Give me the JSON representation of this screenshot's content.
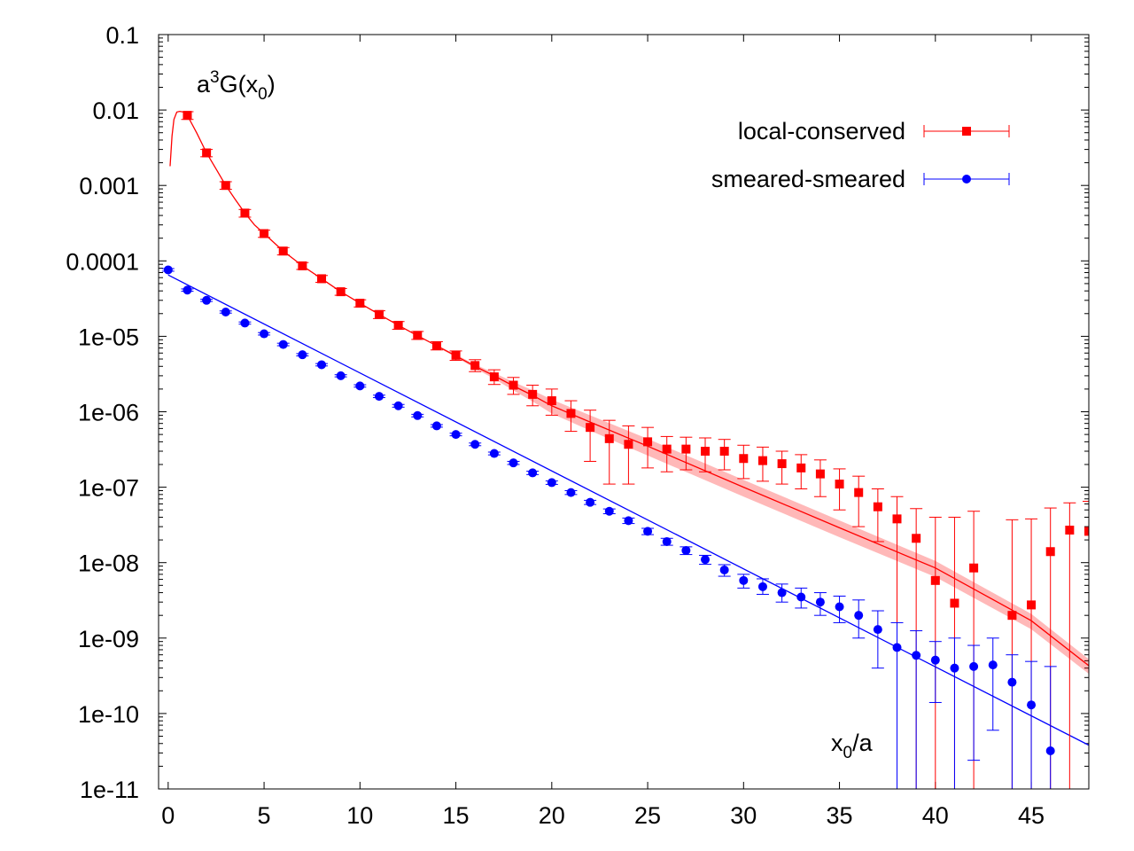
{
  "chart_data": {
    "type": "scatter",
    "yscale": "log",
    "xlim": [
      -0.5,
      48
    ],
    "ylim": [
      1e-11,
      0.1
    ],
    "x_ticks": [
      0,
      5,
      10,
      15,
      20,
      25,
      30,
      35,
      40,
      45
    ],
    "x_tick_labels": [
      "0",
      "5",
      "10",
      "15",
      "20",
      "25",
      "30",
      "35",
      "40",
      "45"
    ],
    "y_ticks": [
      0.1,
      0.01,
      0.001,
      0.0001,
      1e-05,
      1e-06,
      1e-07,
      1e-08,
      1e-09,
      1e-10,
      1e-11
    ],
    "y_tick_labels": [
      "0.1",
      "0.01",
      "0.001",
      "0.0001",
      "1e-05",
      "1e-06",
      "1e-07",
      "1e-08",
      "1e-09",
      "1e-10",
      "1e-11"
    ],
    "ylabel": {
      "base": "a",
      "sup": "3",
      "main": "G(x",
      "sub": "0",
      "tail": ")"
    },
    "xlabel": {
      "base": "x",
      "sub": "0",
      "tail": "/a"
    },
    "legend_position": "top-right",
    "series": [
      {
        "name": "local-conserved",
        "color": "#ff0000",
        "marker": "square",
        "x": [
          1,
          2,
          3,
          4,
          5,
          6,
          7,
          8,
          9,
          10,
          11,
          12,
          13,
          14,
          15,
          16,
          17,
          18,
          19,
          20,
          21,
          22,
          23,
          24,
          25,
          26,
          27,
          28,
          29,
          30,
          31,
          32,
          33,
          34,
          35,
          36,
          37,
          38,
          39,
          40,
          41,
          42,
          43,
          44,
          45,
          46,
          47,
          48
        ],
        "y": [
          0.0085,
          0.0027,
          0.001,
          0.00043,
          0.00023,
          0.000135,
          8.6e-05,
          5.8e-05,
          3.9e-05,
          2.75e-05,
          1.95e-05,
          1.4e-05,
          1.03e-05,
          7.5e-06,
          5.6e-06,
          4.1e-06,
          2.9e-06,
          2.25e-06,
          1.7e-06,
          1.4e-06,
          9.5e-07,
          6.2e-07,
          4.4e-07,
          3.7e-07,
          4e-07,
          3.2e-07,
          3.2e-07,
          3e-07,
          3e-07,
          2.4e-07,
          2.25e-07,
          2.05e-07,
          1.8e-07,
          1.5e-07,
          1.1e-07,
          8.5e-08,
          5.5e-08,
          3.8e-08,
          2.1e-08,
          5.8e-09,
          2.9e-09,
          8.5e-09,
          null,
          2e-09,
          2.75e-09,
          1.4e-08,
          2.7e-08,
          2.6e-08
        ],
        "y_err_low": [
          0.0075,
          0.0024,
          0.00089,
          0.00038,
          0.000205,
          0.00012,
          7.7e-05,
          5.2e-05,
          3.5e-05,
          2.45e-05,
          1.72e-05,
          1.24e-05,
          9.1e-06,
          6.6e-06,
          4.8e-06,
          3.4e-06,
          2.3e-06,
          1.7e-06,
          1.2e-06,
          9e-07,
          5.5e-07,
          2.2e-07,
          1.1e-07,
          1.1e-07,
          1.8e-07,
          1.6e-07,
          1.7e-07,
          1.6e-07,
          1.7e-07,
          1.3e-07,
          1.2e-07,
          1.1e-07,
          9.5e-08,
          7.5e-08,
          5e-08,
          3e-08,
          1.9e-08,
          1e-11,
          1e-11,
          1e-11,
          1e-11,
          1e-11,
          null,
          1e-11,
          1e-11,
          1e-11,
          1e-11,
          1e-11
        ],
        "y_err_high": [
          0.0095,
          0.003,
          0.00112,
          0.00048,
          0.000255,
          0.00015,
          9.5e-05,
          6.4e-05,
          4.3e-05,
          3.05e-05,
          2.18e-05,
          1.57e-05,
          1.16e-05,
          8.5e-06,
          6.4e-06,
          4.9e-06,
          3.6e-06,
          2.85e-06,
          2.25e-06,
          2e-06,
          1.4e-06,
          1.05e-06,
          7.7e-07,
          6.5e-07,
          6.2e-07,
          4.7e-07,
          4.6e-07,
          4.5e-07,
          4.3e-07,
          3.6e-07,
          3.4e-07,
          3e-07,
          2.7e-07,
          2.3e-07,
          1.75e-07,
          1.4e-07,
          9.5e-08,
          7.5e-08,
          5.2e-08,
          4e-08,
          4e-08,
          4.8e-08,
          null,
          3.7e-08,
          3.8e-08,
          5.3e-08,
          6.2e-08,
          6.5e-08
        ]
      },
      {
        "name": "smeared-smeared",
        "color": "#0000ff",
        "marker": "circle",
        "x": [
          0,
          1,
          2,
          3,
          4,
          5,
          6,
          7,
          8,
          9,
          10,
          11,
          12,
          13,
          14,
          15,
          16,
          17,
          18,
          19,
          20,
          21,
          22,
          23,
          24,
          25,
          26,
          27,
          28,
          29,
          30,
          31,
          32,
          33,
          34,
          35,
          36,
          37,
          38,
          39,
          40,
          41,
          42,
          43,
          44,
          45,
          46
        ],
        "y": [
          7.6e-05,
          4.1e-05,
          3e-05,
          2.1e-05,
          1.5e-05,
          1.08e-05,
          7.8e-06,
          5.7e-06,
          4.2e-06,
          3e-06,
          2.2e-06,
          1.6e-06,
          1.2e-06,
          8.9e-07,
          6.5e-07,
          5e-07,
          3.7e-07,
          2.8e-07,
          2.1e-07,
          1.55e-07,
          1.15e-07,
          8.5e-08,
          6.3e-08,
          4.8e-08,
          3.6e-08,
          2.6e-08,
          1.9e-08,
          1.45e-08,
          1.1e-08,
          8e-09,
          5.8e-09,
          4.8e-09,
          4e-09,
          3.5e-09,
          3e-09,
          2.6e-09,
          2e-09,
          1.3e-09,
          7.5e-10,
          5.9e-10,
          5.1e-10,
          4e-10,
          4.2e-10,
          4.4e-10,
          2.6e-10,
          1.3e-10,
          3.2e-11
        ],
        "y_err_low": [
          7.3e-05,
          3.95e-05,
          2.9e-05,
          2.03e-05,
          1.45e-05,
          1.04e-05,
          7.5e-06,
          5.5e-06,
          4.05e-06,
          2.9e-06,
          2.12e-06,
          1.54e-06,
          1.15e-06,
          8.55e-07,
          6.25e-07,
          4.8e-07,
          3.55e-07,
          2.68e-07,
          2e-07,
          1.47e-07,
          1.09e-07,
          8e-08,
          5.9e-08,
          4.45e-08,
          3.3e-08,
          2.35e-08,
          1.7e-08,
          1.28e-08,
          9.5e-09,
          6.6e-09,
          4.6e-09,
          3.8e-09,
          3e-09,
          2.5e-09,
          2e-09,
          1.6e-09,
          1e-09,
          4e-10,
          1e-11,
          1e-11,
          1.4e-10,
          1e-11,
          2.4e-11,
          6e-11,
          1e-11,
          1e-11,
          1e-11
        ],
        "y_err_high": [
          7.9e-05,
          4.25e-05,
          3.1e-05,
          2.17e-05,
          1.55e-05,
          1.12e-05,
          8.1e-06,
          5.9e-06,
          4.35e-06,
          3.1e-06,
          2.28e-06,
          1.66e-06,
          1.25e-06,
          9.25e-07,
          6.75e-07,
          5.2e-07,
          3.85e-07,
          2.92e-07,
          2.2e-07,
          1.63e-07,
          1.21e-07,
          9e-08,
          6.7e-08,
          5.15e-08,
          3.9e-08,
          2.85e-08,
          2.1e-08,
          1.62e-08,
          1.25e-08,
          9.4e-09,
          7e-09,
          6.1e-09,
          5.2e-09,
          4.6e-09,
          4e-09,
          3.6e-09,
          3.2e-09,
          2.3e-09,
          1.6e-09,
          1.25e-09,
          9e-10,
          1e-09,
          8e-10,
          1e-09,
          6e-10,
          4.9e-10,
          4.2e-10
        ]
      }
    ],
    "fits": [
      {
        "name": "local-conserved-fit",
        "color": "#ff0000",
        "x": [
          0.1,
          0.2,
          0.3,
          0.45,
          0.6,
          0.8,
          1,
          1.5,
          2,
          2.5,
          3,
          3.5,
          4,
          4.5,
          5,
          6,
          7,
          8,
          9,
          10,
          11,
          12,
          13,
          14,
          15,
          16,
          17,
          18,
          19,
          20,
          22,
          25,
          30,
          35,
          40,
          45,
          48
        ],
        "y": [
          0.0018,
          0.0045,
          0.0075,
          0.0094,
          0.0096,
          0.0094,
          0.0085,
          0.0049,
          0.0027,
          0.00165,
          0.001,
          0.00065,
          0.00043,
          0.0003,
          0.00023,
          0.000135,
          8.6e-05,
          5.8e-05,
          3.9e-05,
          2.75e-05,
          1.95e-05,
          1.4e-05,
          1.02e-05,
          7.5e-06,
          5.5e-06,
          4e-06,
          3e-06,
          2.2e-06,
          1.65e-06,
          1.2e-06,
          7.3e-07,
          3.5e-07,
          1e-07,
          2.9e-08,
          8.5e-09,
          1.7e-09,
          4.3e-10
        ],
        "band_from_x": 14,
        "band_rel": [
          0.03,
          0.04,
          0.06,
          0.09,
          0.13,
          0.17,
          0.21,
          0.23,
          0.25,
          0.25,
          0.25,
          0.24,
          0.23,
          0.22,
          0.2,
          0.18,
          0.17
        ]
      },
      {
        "name": "smeared-smeared-fit",
        "color": "#0000ff",
        "x": [
          0,
          48
        ],
        "y": [
          6.5e-05,
          3.8e-11
        ],
        "band_from_x": 26,
        "band_rel": [
          0.09,
          0.23
        ]
      }
    ]
  }
}
